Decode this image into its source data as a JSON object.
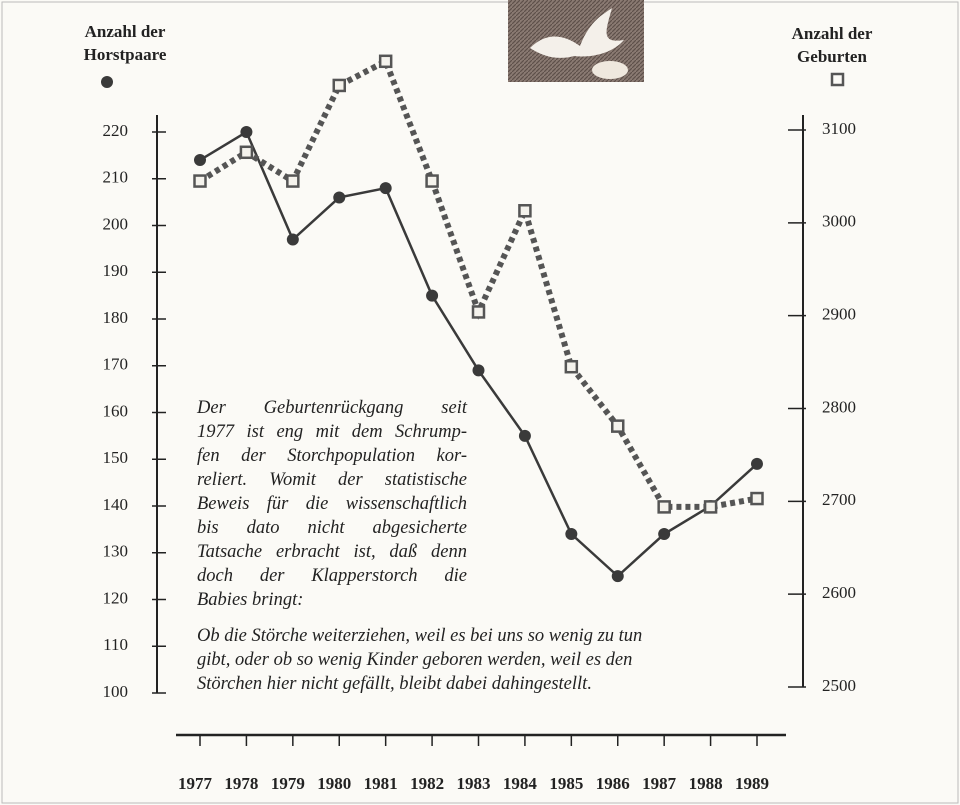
{
  "chart_data": {
    "type": "line",
    "ylabel": [
      "Anzahl der",
      "Horstpaare"
    ],
    "y2label": [
      "Anzahl der",
      "Geburten"
    ],
    "x": [
      1977,
      1978,
      1979,
      1980,
      1981,
      1982,
      1983,
      1984,
      1985,
      1986,
      1987,
      1988,
      1989
    ],
    "xlim": [
      1977,
      1989
    ],
    "series": [
      {
        "color": "#3a3a3a",
        "values": [
          214,
          220,
          197,
          206,
          208,
          185,
          169,
          155,
          134,
          125,
          134,
          140,
          149
        ]
      },
      {
        "color": "#555555",
        "axis": "y2",
        "values": [
          3045,
          3076,
          3045,
          3148,
          3174,
          3045,
          2904,
          3013,
          2845,
          2781,
          2694,
          2694,
          2703
        ]
      }
    ],
    "ylim": [
      100,
      220
    ],
    "yticks": [
      100,
      110,
      120,
      130,
      140,
      150,
      160,
      170,
      180,
      190,
      200,
      210,
      220
    ],
    "y2lim": [
      2500,
      3100
    ],
    "y2ticks": [
      2500,
      2600,
      2700,
      2800,
      2900,
      3000,
      3100
    ],
    "annotation": [
      [
        "Der Geburtenrückgang seit",
        "1977 ist eng mit dem Schrump-",
        "fen der Storchpopulation kor-",
        "reliert. Womit der statistische",
        "Beweis für die wissenschaftlich",
        "bis dato nicht abgesicherte",
        "Tatsache erbracht ist, daß denn",
        "doch der Klapperstorch die",
        "Babies bringt:"
      ],
      [
        "Ob die Störche weiterziehen, weil es bei uns so wenig zu tun",
        "gibt, oder ob so wenig Kinder geboren werden, weil es den",
        "Störchen hier nicht gefällt, bleibt dabei dahingestellt."
      ]
    ]
  }
}
